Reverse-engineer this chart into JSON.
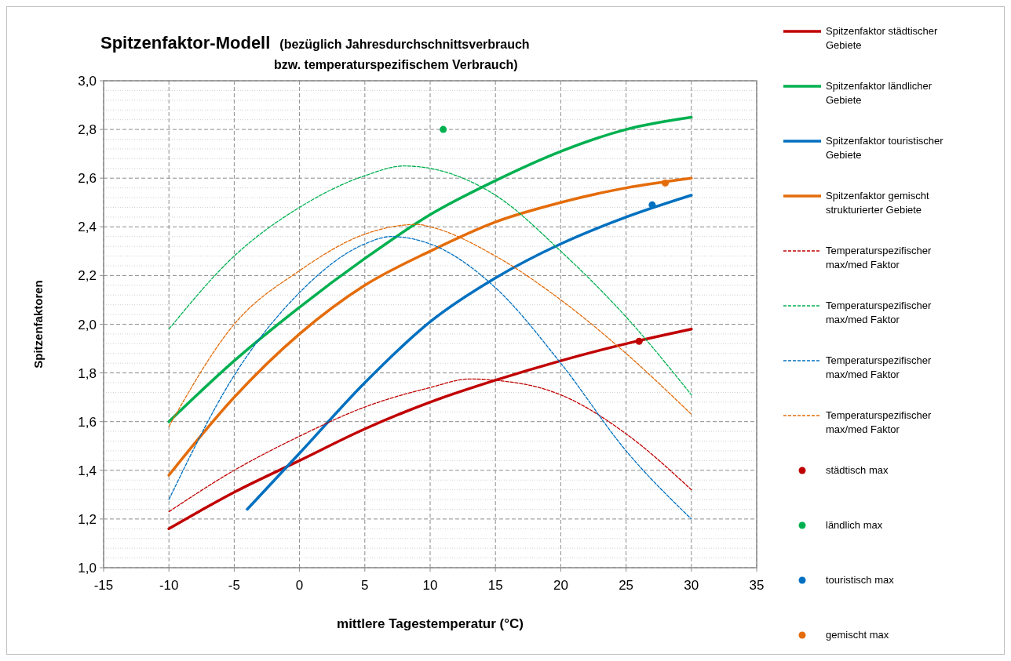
{
  "chart_data": {
    "type": "line",
    "title": "Spitzenfaktor-Modell",
    "subtitle": "(bezüglich Jahresdurchschnittsverbrauch bzw. temperaturspezifischem Verbrauch)",
    "xlabel": "mittlere Tagestemperatur (°C)",
    "ylabel": "Spitzenfaktoren",
    "xlim": [
      -15,
      35
    ],
    "xticks": [
      -15,
      -10,
      -5,
      0,
      5,
      10,
      15,
      20,
      25,
      30,
      35
    ],
    "ylim": [
      1.0,
      3.0
    ],
    "yticks": [
      {
        "value": 1.0,
        "label": "1,0"
      },
      {
        "value": 1.2,
        "label": "1,2"
      },
      {
        "value": 1.4,
        "label": "1,4"
      },
      {
        "value": 1.6,
        "label": "1,6"
      },
      {
        "value": 1.8,
        "label": "1,8"
      },
      {
        "value": 2.0,
        "label": "2,0"
      },
      {
        "value": 2.2,
        "label": "2,2"
      },
      {
        "value": 2.4,
        "label": "2,4"
      },
      {
        "value": 2.6,
        "label": "2,6"
      },
      {
        "value": 2.8,
        "label": "2,8"
      },
      {
        "value": 3.0,
        "label": "3,0"
      }
    ],
    "grid": true,
    "legend": "right",
    "series": [
      {
        "name": "Spitzenfaktor städtischer Gebiete",
        "color": "#c00000",
        "line_style": "solid",
        "x": [
          -10,
          -5,
          0,
          5,
          10,
          15,
          20,
          25,
          30
        ],
        "values": [
          1.16,
          1.31,
          1.44,
          1.57,
          1.68,
          1.77,
          1.85,
          1.92,
          1.98
        ]
      },
      {
        "name": "Spitzenfaktor ländlicher Gebiete",
        "color": "#00b050",
        "line_style": "solid",
        "x": [
          -10,
          -5,
          0,
          5,
          10,
          15,
          20,
          25,
          30
        ],
        "values": [
          1.6,
          1.85,
          2.07,
          2.27,
          2.45,
          2.59,
          2.71,
          2.8,
          2.85
        ]
      },
      {
        "name": "Spitzenfaktor touristischer Gebiete",
        "color": "#0070c0",
        "line_style": "solid",
        "x": [
          -4,
          0,
          5,
          10,
          15,
          20,
          25,
          30
        ],
        "values": [
          1.24,
          1.47,
          1.76,
          2.01,
          2.19,
          2.33,
          2.44,
          2.53
        ]
      },
      {
        "name": "Spitzenfaktor gemischt strukturierter Gebiete",
        "color": "#e46c0a",
        "line_style": "solid",
        "x": [
          -10,
          -5,
          0,
          5,
          10,
          15,
          20,
          25,
          30
        ],
        "values": [
          1.38,
          1.7,
          1.96,
          2.16,
          2.3,
          2.42,
          2.5,
          2.56,
          2.6
        ]
      },
      {
        "name": "Temperaturspezifischer max/med Faktor",
        "color": "#c00000",
        "line_style": "dashed",
        "x": [
          -10,
          -5,
          0,
          5,
          10,
          13,
          15,
          20,
          25,
          30
        ],
        "values": [
          1.23,
          1.4,
          1.54,
          1.66,
          1.74,
          1.775,
          1.77,
          1.71,
          1.55,
          1.32
        ]
      },
      {
        "name": "Temperaturspezifischer max/med Faktor",
        "color": "#00b050",
        "line_style": "dashed",
        "x": [
          -10,
          -5,
          0,
          5,
          8,
          10,
          15,
          20,
          25,
          30
        ],
        "values": [
          1.98,
          2.28,
          2.48,
          2.61,
          2.65,
          2.64,
          2.53,
          2.3,
          2.03,
          1.71
        ]
      },
      {
        "name": "Temperaturspezifischer max/med Faktor",
        "color": "#0070c0",
        "line_style": "dashed",
        "x": [
          -10,
          -5,
          0,
          5,
          7,
          10,
          15,
          20,
          25,
          30
        ],
        "values": [
          1.28,
          1.79,
          2.13,
          2.33,
          2.36,
          2.33,
          2.15,
          1.84,
          1.48,
          1.2
        ]
      },
      {
        "name": "Temperaturspezifischer max/med Faktor",
        "color": "#e46c0a",
        "line_style": "dashed",
        "x": [
          -10,
          -5,
          0,
          5,
          9,
          10,
          15,
          20,
          25,
          30
        ],
        "values": [
          1.58,
          2.0,
          2.22,
          2.37,
          2.41,
          2.4,
          2.28,
          2.1,
          1.88,
          1.63
        ]
      },
      {
        "name": "städtisch max",
        "type": "scatter",
        "color": "#c00000",
        "marker": "circle",
        "x": [
          26
        ],
        "values": [
          1.93
        ]
      },
      {
        "name": "ländlich max",
        "type": "scatter",
        "color": "#00b050",
        "marker": "circle",
        "x": [
          11
        ],
        "values": [
          2.8
        ]
      },
      {
        "name": "touristisch max",
        "type": "scatter",
        "color": "#0070c0",
        "marker": "circle",
        "x": [
          27
        ],
        "values": [
          2.49
        ]
      },
      {
        "name": "gemischt max",
        "type": "scatter",
        "color": "#e46c0a",
        "marker": "circle",
        "x": [
          28
        ],
        "values": [
          2.58
        ]
      }
    ]
  }
}
